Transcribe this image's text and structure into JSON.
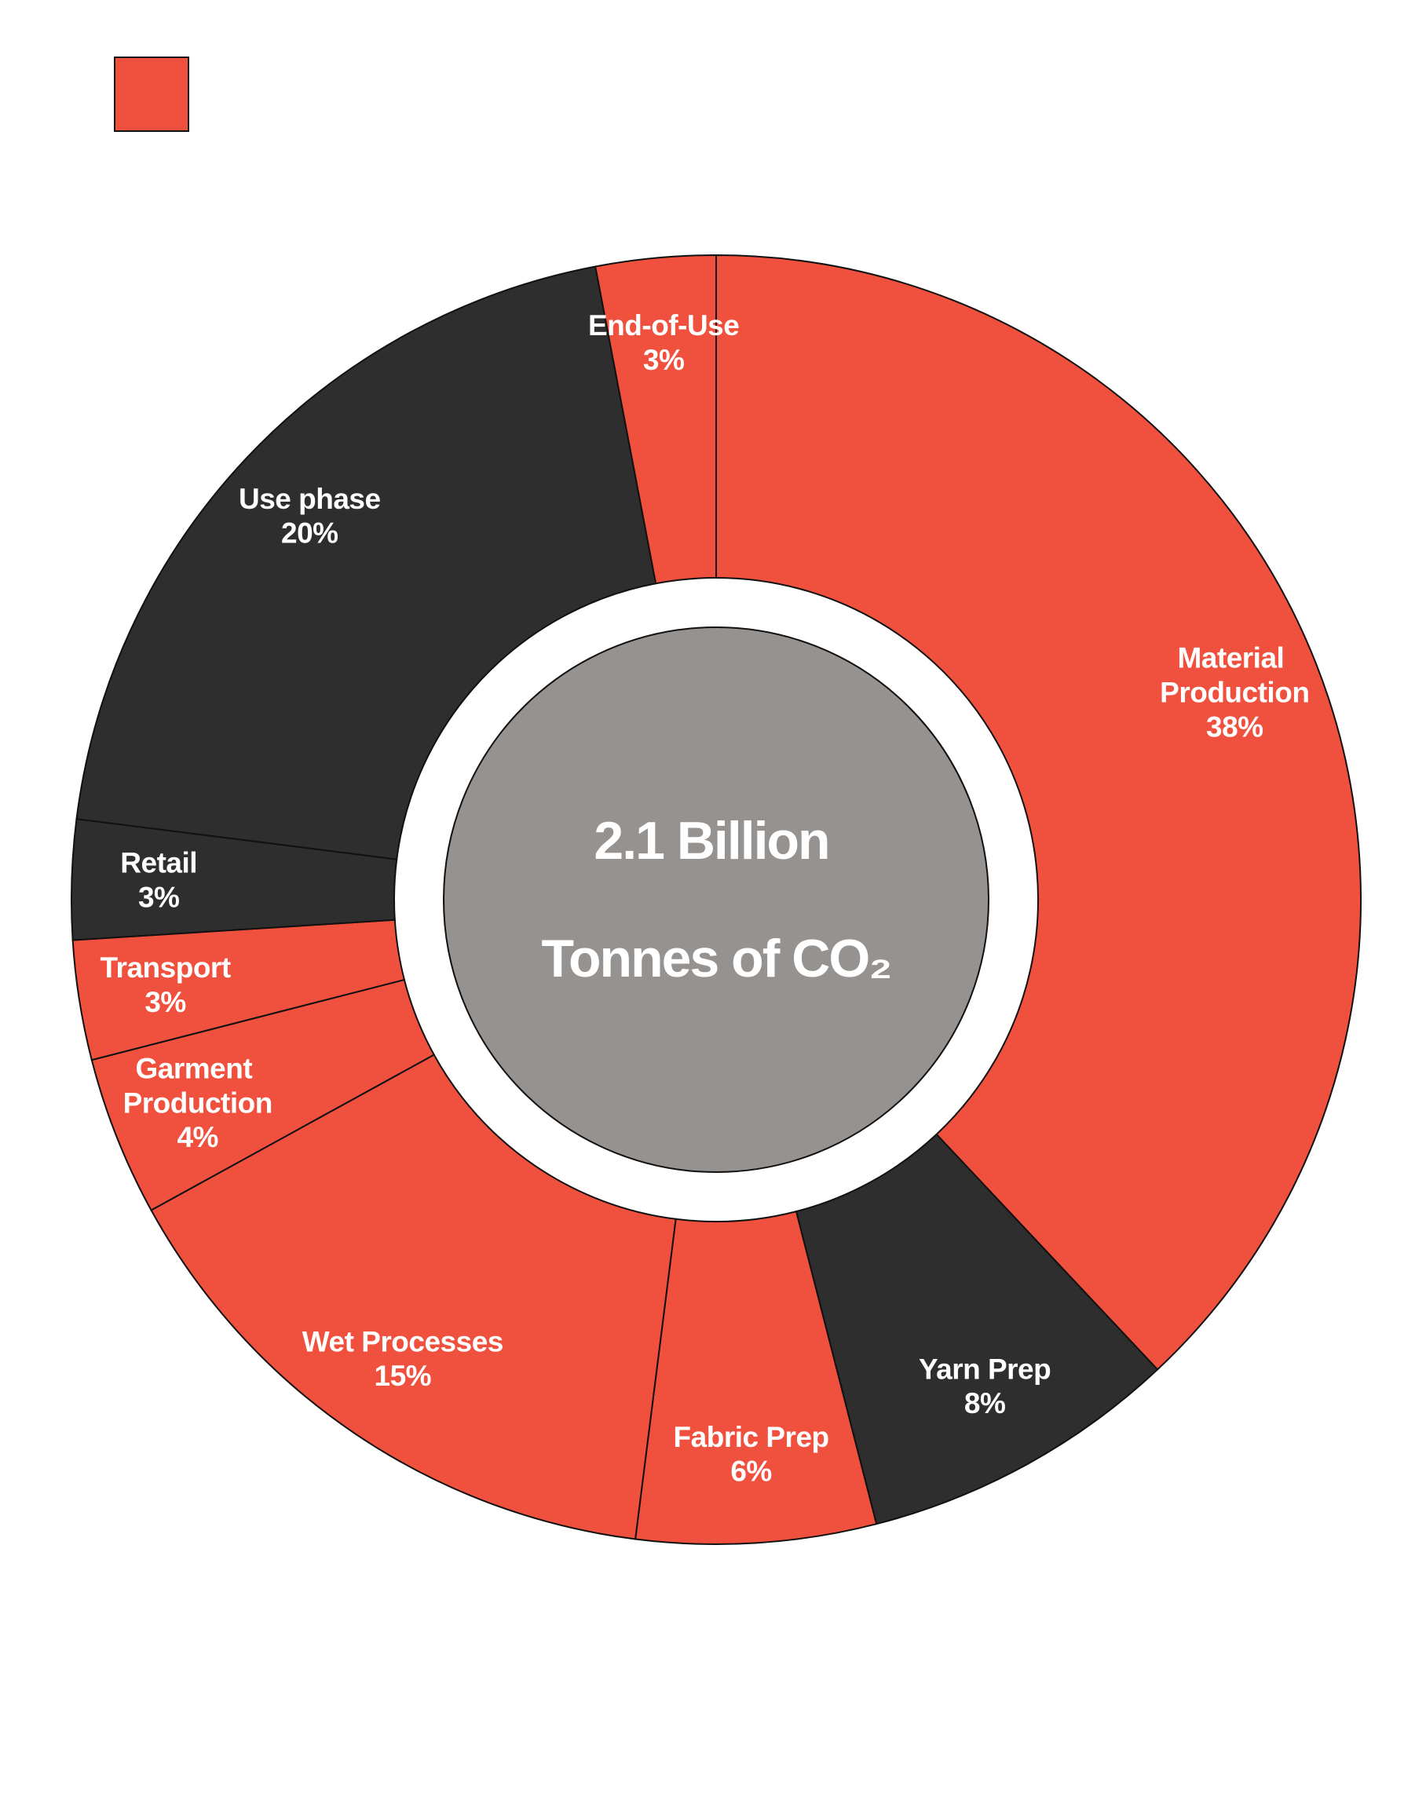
{
  "chart_data": {
    "type": "donut",
    "center_text": [
      "2.1 Billion",
      "Tonnes of CO₂"
    ],
    "categories": [
      "Material Production",
      "Yarn Prep",
      "Fabric Prep",
      "Wet Processes",
      "Garment Production",
      "Transport",
      "Retail",
      "Use phase",
      "End-of-Use"
    ],
    "values": [
      38,
      8,
      6,
      15,
      4,
      3,
      3,
      20,
      3
    ],
    "value_labels": [
      "38%",
      "8%",
      "6%",
      "15%",
      "4%",
      "3%",
      "3%",
      "20%",
      "3%"
    ],
    "colors": [
      "#f0513e",
      "#2f2e2e",
      "#f0513e",
      "#f0513e",
      "#f0513e",
      "#f0513e",
      "#2f2e2e",
      "#2f2e2e",
      "#f0513e"
    ],
    "center_color": "#959290"
  }
}
